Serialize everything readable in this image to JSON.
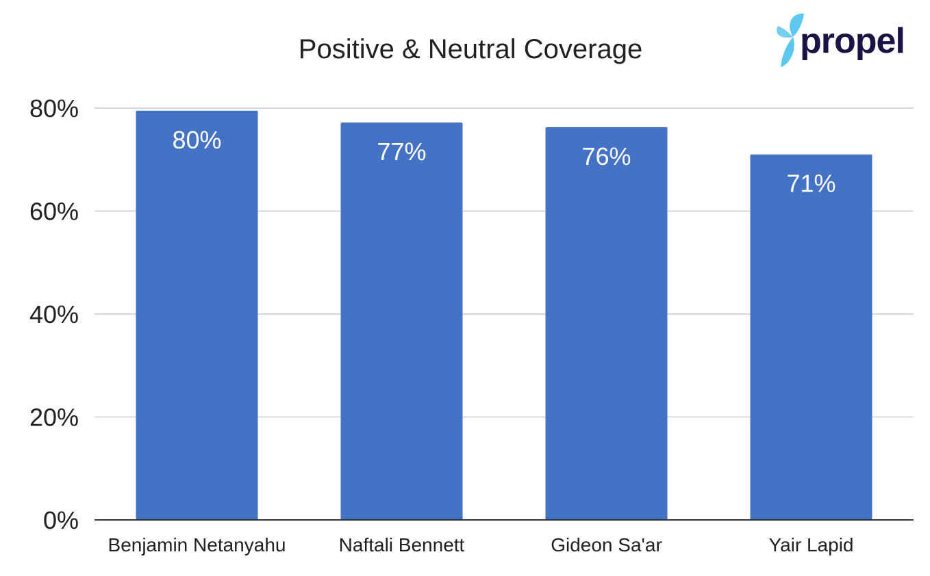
{
  "logo": {
    "text": "propel",
    "colors": {
      "text": "#1a1446",
      "mark": "#5cc8ef"
    }
  },
  "chart_data": {
    "type": "bar",
    "title": "Positive & Neutral Coverage",
    "categories": [
      "Benjamin Netanyahu",
      "Naftali Bennett",
      "Gideon Sa'ar",
      "Yair Lapid"
    ],
    "values": [
      79.5,
      77.2,
      76.3,
      71.0
    ],
    "data_labels": [
      "80%",
      "77%",
      "76%",
      "71%"
    ],
    "ylim": [
      0,
      80
    ],
    "y_ticks": [
      0,
      20,
      40,
      60,
      80
    ],
    "y_tick_labels": [
      "0%",
      "20%",
      "40%",
      "60%",
      "80%"
    ],
    "xlabel": "",
    "ylabel": "",
    "grid": true,
    "legend": "none",
    "colors": {
      "bar": "#4472c4",
      "grid": "#cccccc",
      "axis": "#333333",
      "label_on_bar": "#ffffff"
    }
  }
}
